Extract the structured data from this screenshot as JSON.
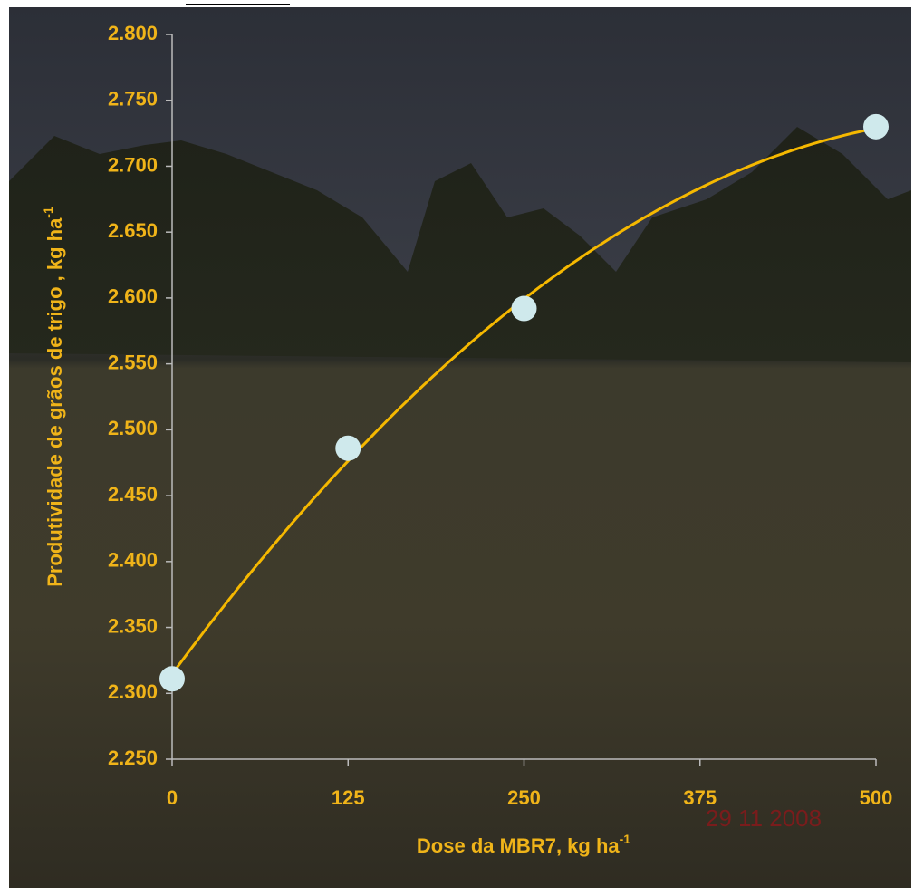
{
  "chart_data": {
    "type": "scatter",
    "x_label": "Dose da MBR7, kg ha",
    "x_label_sup": "-1",
    "y_label": "Produtividade de grãos de trigo , kg ha",
    "y_label_sup": "-1",
    "annotation": "29 11 2008",
    "series": [
      {
        "color": "#cfe9ec",
        "x": [
          0,
          125,
          250,
          500
        ],
        "values": [
          2311,
          2486,
          2592,
          2730
        ]
      }
    ],
    "trendline": {
      "type": "polynomial",
      "order": 2,
      "color": "#f5b800"
    },
    "xlim": [
      0,
      500
    ],
    "xticks": [
      0,
      125,
      250,
      375,
      500
    ],
    "ylim": [
      2250,
      2800
    ],
    "yticks": [
      {
        "value": 2250,
        "label": "2.250"
      },
      {
        "value": 2300,
        "label": "2.300"
      },
      {
        "value": 2350,
        "label": "2.350"
      },
      {
        "value": 2400,
        "label": "2.400"
      },
      {
        "value": 2450,
        "label": "2.450"
      },
      {
        "value": 2500,
        "label": "2.500"
      },
      {
        "value": 2550,
        "label": "2.550"
      },
      {
        "value": 2600,
        "label": "2.600"
      },
      {
        "value": 2650,
        "label": "2.650"
      },
      {
        "value": 2700,
        "label": "2.700"
      },
      {
        "value": 2750,
        "label": "2.750"
      },
      {
        "value": 2800,
        "label": "2.800"
      }
    ],
    "label_color": "#f0b419"
  }
}
